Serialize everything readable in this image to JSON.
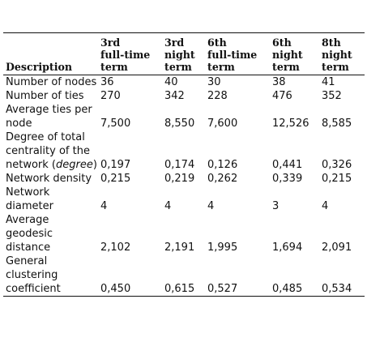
{
  "table": {
    "headers": [
      "Description",
      "3rd\nfull-time\nterm",
      "3rd\nnight\nterm",
      "6th\nfull-time\nterm",
      "6th\nnight\nterm",
      "8th\nnight\nterm"
    ],
    "rows": [
      {
        "label_parts": [
          {
            "text": "Number of nodes",
            "italic": false
          }
        ],
        "values": [
          "36",
          "40",
          "30",
          "38",
          "41"
        ]
      },
      {
        "label_parts": [
          {
            "text": "Number of ties",
            "italic": false
          }
        ],
        "values": [
          "270",
          "342",
          "228",
          "476",
          "352"
        ]
      },
      {
        "label_parts": [
          {
            "text": "Average ties per node",
            "italic": false
          }
        ],
        "values": [
          "7,500",
          "8,550",
          "7,600",
          "12,526",
          "8,585"
        ]
      },
      {
        "label_parts": [
          {
            "text": "Degree of total centrality of the network (",
            "italic": false
          },
          {
            "text": "degree",
            "italic": true
          },
          {
            "text": ")",
            "italic": false
          }
        ],
        "values": [
          "0,197",
          "0,174",
          "0,126",
          "0,441",
          "0,326"
        ]
      },
      {
        "label_parts": [
          {
            "text": "Network density",
            "italic": false
          }
        ],
        "values": [
          "0,215",
          "0,219",
          "0,262",
          "0,339",
          "0,215"
        ]
      },
      {
        "label_parts": [
          {
            "text": "Network diameter",
            "italic": false
          }
        ],
        "values": [
          "4",
          "4",
          "4",
          "3",
          "4"
        ]
      },
      {
        "label_parts": [
          {
            "text": "Average geodesic distance",
            "italic": false
          }
        ],
        "values": [
          "2,102",
          "2,191",
          "1,995",
          "1,694",
          "2,091"
        ]
      },
      {
        "label_parts": [
          {
            "text": "General clustering coefficient",
            "italic": false
          }
        ],
        "values": [
          "0,450",
          "0,615",
          "0,527",
          "0,485",
          "0,534"
        ]
      }
    ]
  }
}
